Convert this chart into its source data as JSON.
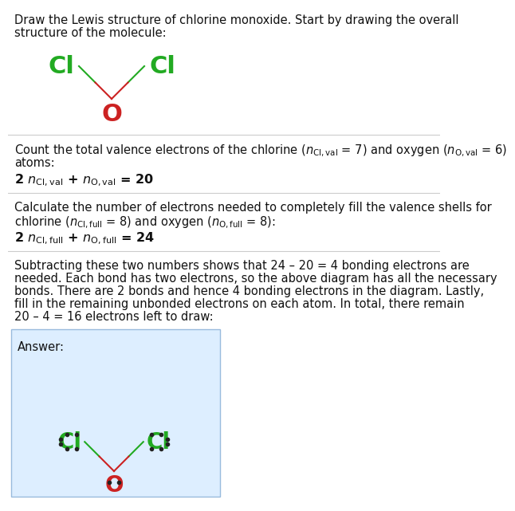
{
  "title_line1": "Draw the Lewis structure of chlorine monoxide. Start by drawing the overall",
  "title_line2": "structure of the molecule:",
  "s1_line1": "Count the total valence electrons of the chlorine ($n_{\\rm Cl,val}$ = 7) and oxygen ($n_{\\rm O,val}$ = 6)",
  "s1_line2": "atoms:",
  "s1_eq": "2 $n_{\\rm Cl,val}$ + $n_{\\rm O,val}$ = 20",
  "s2_line1": "Calculate the number of electrons needed to completely fill the valence shells for",
  "s2_line2": "chlorine ($n_{\\rm Cl,full}$ = 8) and oxygen ($n_{\\rm O,full}$ = 8):",
  "s2_eq": "2 $n_{\\rm Cl,full}$ + $n_{\\rm O,full}$ = 24",
  "s3_para": [
    "Subtracting these two numbers shows that 24 – 20 = 4 bonding electrons are",
    "needed. Each bond has two electrons, so the above diagram has all the necessary",
    "bonds. There are 2 bonds and hence 4 bonding electrons in the diagram. Lastly,",
    "fill in the remaining unbonded electrons on each atom. In total, there remain",
    "20 – 4 = 16 electrons left to draw:"
  ],
  "answer_label": "Answer:",
  "cl_color": "#22aa22",
  "o_color": "#cc2222",
  "bond_green": "#22aa22",
  "bond_red": "#cc2222",
  "answer_bg": "#ddeeff",
  "answer_border": "#99bbdd",
  "bg_color": "#ffffff",
  "text_color": "#111111",
  "divider_color": "#cccccc",
  "font_size_body": 10.5,
  "font_size_eq": 11.5,
  "font_size_atom_top": 22,
  "font_size_atom_ans": 20
}
